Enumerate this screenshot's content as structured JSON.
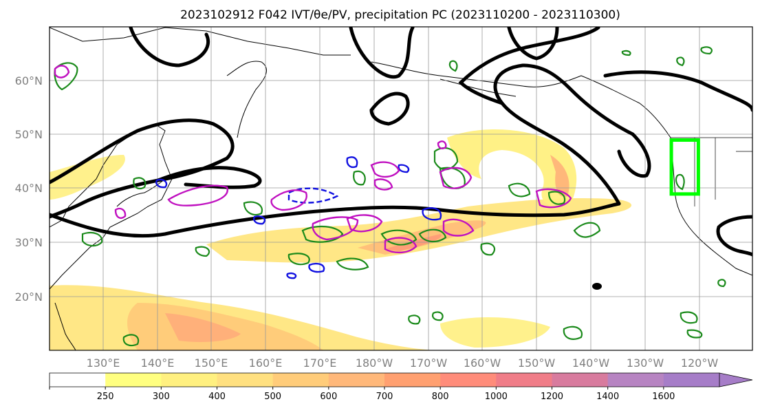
{
  "title": "2023102912 F042 IVT/θe/PV, precipitation PC (2023110200 - 2023110300)",
  "map": {
    "lat_labels": [
      "60°N",
      "50°N",
      "40°N",
      "30°N",
      "20°N"
    ],
    "lon_labels": [
      "130°E",
      "140°E",
      "150°E",
      "160°E",
      "170°E",
      "180°W",
      "170°W",
      "160°W",
      "150°W",
      "140°W",
      "130°W",
      "120°W"
    ]
  },
  "colorbar": {
    "ticks": [
      "250",
      "300",
      "400",
      "500",
      "600",
      "700",
      "800",
      "1000",
      "1200",
      "1400",
      "1600"
    ],
    "colors": [
      "#ffffff",
      "#ffff80",
      "#fff080",
      "#ffe080",
      "#ffcc7a",
      "#ffb87a",
      "#ffa070",
      "#ff8c7a",
      "#f07d88",
      "#d87b9e",
      "#b784c2",
      "#a67dc8",
      "#a67dc8"
    ]
  },
  "chart_data": {
    "type": "heatmap",
    "title": "2023102912 F042 IVT/θe/PV, precipitation PC (2023110200 - 2023110300)",
    "lon_range": [
      120,
      250
    ],
    "lat_range": [
      10,
      70
    ],
    "levels": [
      250,
      300,
      400,
      500,
      600,
      700,
      800,
      1000,
      1200,
      1400,
      1600
    ],
    "highlight_box": {
      "lon": [
        235,
        240
      ],
      "lat": [
        39,
        49
      ],
      "color": "#00ff00"
    }
  }
}
